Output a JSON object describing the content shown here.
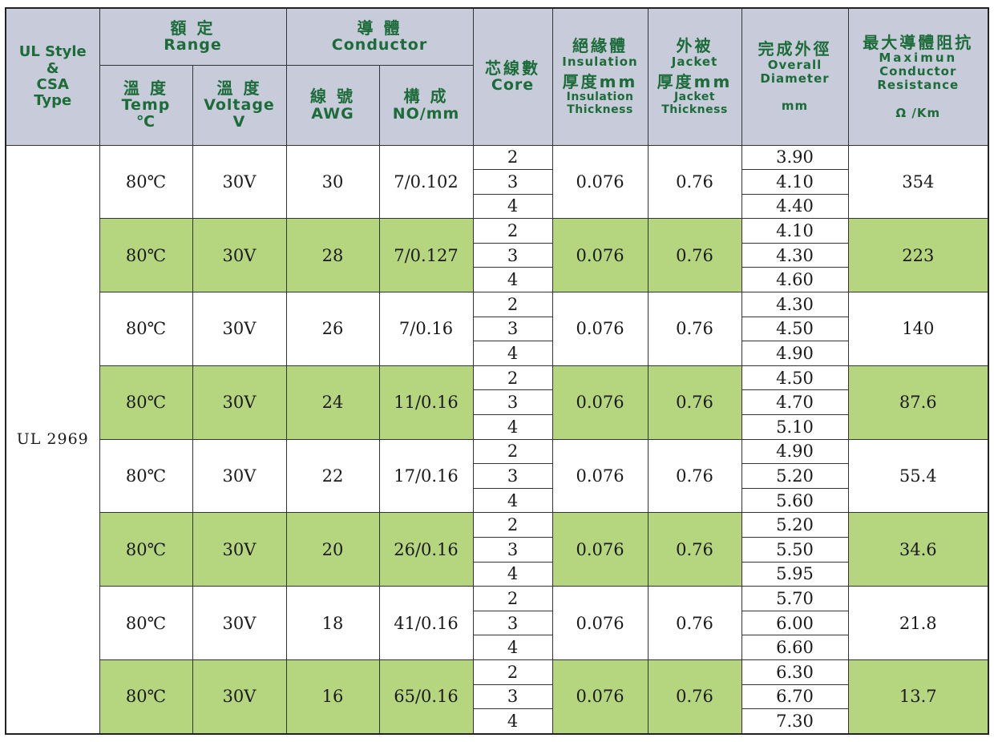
{
  "header": {
    "ul_style": "UL Style",
    "amp": "&",
    "csa": "CSA",
    "type": "Type",
    "range_cjk": "額 定",
    "range_en": "Range",
    "temp_cjk": "溫 度",
    "temp_en": "Temp",
    "temp_unit": "℃",
    "voltage_cjk": "溫 度",
    "voltage_en": "Voltage",
    "voltage_unit": "V",
    "conductor_cjk": "導 體",
    "conductor_en": "Conductor",
    "awg_cjk": "線 號",
    "awg_en": "AWG",
    "no_cjk": "構 成",
    "no_en": "NO/mm",
    "core_cjk": "芯線數",
    "core_en": "Core",
    "insulation_cjk": "絕緣體",
    "insulation_en": "Insulation",
    "insulation_thk_cjk": "厚度mm",
    "insulation_thk_en1": "Insulation",
    "insulation_thk_en2": "Thickness",
    "jacket_cjk": "外被",
    "jacket_en": "Jacket",
    "jacket_thk_cjk": "厚度mm",
    "jacket_thk_en1": "Jacket",
    "jacket_thk_en2": "Thickness",
    "od_cjk": "完成外徑",
    "od_en1": "Overall",
    "od_en2": "Diameter",
    "od_unit": "mm",
    "res_cjk": "最大導體阻抗",
    "res_en1": "Maximun",
    "res_en2": "Conductor",
    "res_en3": "Resistance",
    "res_unit": "Ω /Km"
  },
  "type_label": "UL 2969",
  "rows": [
    {
      "temp": "80℃",
      "voltage": "30V",
      "awg": "30",
      "construction": "7/0.102",
      "insulation": "0.076",
      "jacket": "0.76",
      "cores": [
        "2",
        "3",
        "4"
      ],
      "diameters": [
        "3.90",
        "4.10",
        "4.40"
      ],
      "resistance": "354"
    },
    {
      "temp": "80℃",
      "voltage": "30V",
      "awg": "28",
      "construction": "7/0.127",
      "insulation": "0.076",
      "jacket": "0.76",
      "cores": [
        "2",
        "3",
        "4"
      ],
      "diameters": [
        "4.10",
        "4.30",
        "4.60"
      ],
      "resistance": "223"
    },
    {
      "temp": "80℃",
      "voltage": "30V",
      "awg": "26",
      "construction": "7/0.16",
      "insulation": "0.076",
      "jacket": "0.76",
      "cores": [
        "2",
        "3",
        "4"
      ],
      "diameters": [
        "4.30",
        "4.50",
        "4.90"
      ],
      "resistance": "140"
    },
    {
      "temp": "80℃",
      "voltage": "30V",
      "awg": "24",
      "construction": "11/0.16",
      "insulation": "0.076",
      "jacket": "0.76",
      "cores": [
        "2",
        "3",
        "4"
      ],
      "diameters": [
        "4.50",
        "4.70",
        "5.10"
      ],
      "resistance": "87.6"
    },
    {
      "temp": "80℃",
      "voltage": "30V",
      "awg": "22",
      "construction": "17/0.16",
      "insulation": "0.076",
      "jacket": "0.76",
      "cores": [
        "2",
        "3",
        "4"
      ],
      "diameters": [
        "4.90",
        "5.20",
        "5.60"
      ],
      "resistance": "55.4"
    },
    {
      "temp": "80℃",
      "voltage": "30V",
      "awg": "20",
      "construction": "26/0.16",
      "insulation": "0.076",
      "jacket": "0.76",
      "cores": [
        "2",
        "3",
        "4"
      ],
      "diameters": [
        "5.20",
        "5.50",
        "5.95"
      ],
      "resistance": "34.6"
    },
    {
      "temp": "80℃",
      "voltage": "30V",
      "awg": "18",
      "construction": "41/0.16",
      "insulation": "0.076",
      "jacket": "0.76",
      "cores": [
        "2",
        "3",
        "4"
      ],
      "diameters": [
        "5.70",
        "6.00",
        "6.60"
      ],
      "resistance": "21.8"
    },
    {
      "temp": "80℃",
      "voltage": "30V",
      "awg": "16",
      "construction": "65/0.16",
      "insulation": "0.076",
      "jacket": "0.76",
      "cores": [
        "2",
        "3",
        "4"
      ],
      "diameters": [
        "6.30",
        "6.70",
        "7.30"
      ],
      "resistance": "13.7"
    }
  ],
  "colors": {
    "header_bg": "#c8cbd9",
    "header_text": "#1c6c3a",
    "band_green": "#b5d57f",
    "band_white": "#ffffff"
  }
}
